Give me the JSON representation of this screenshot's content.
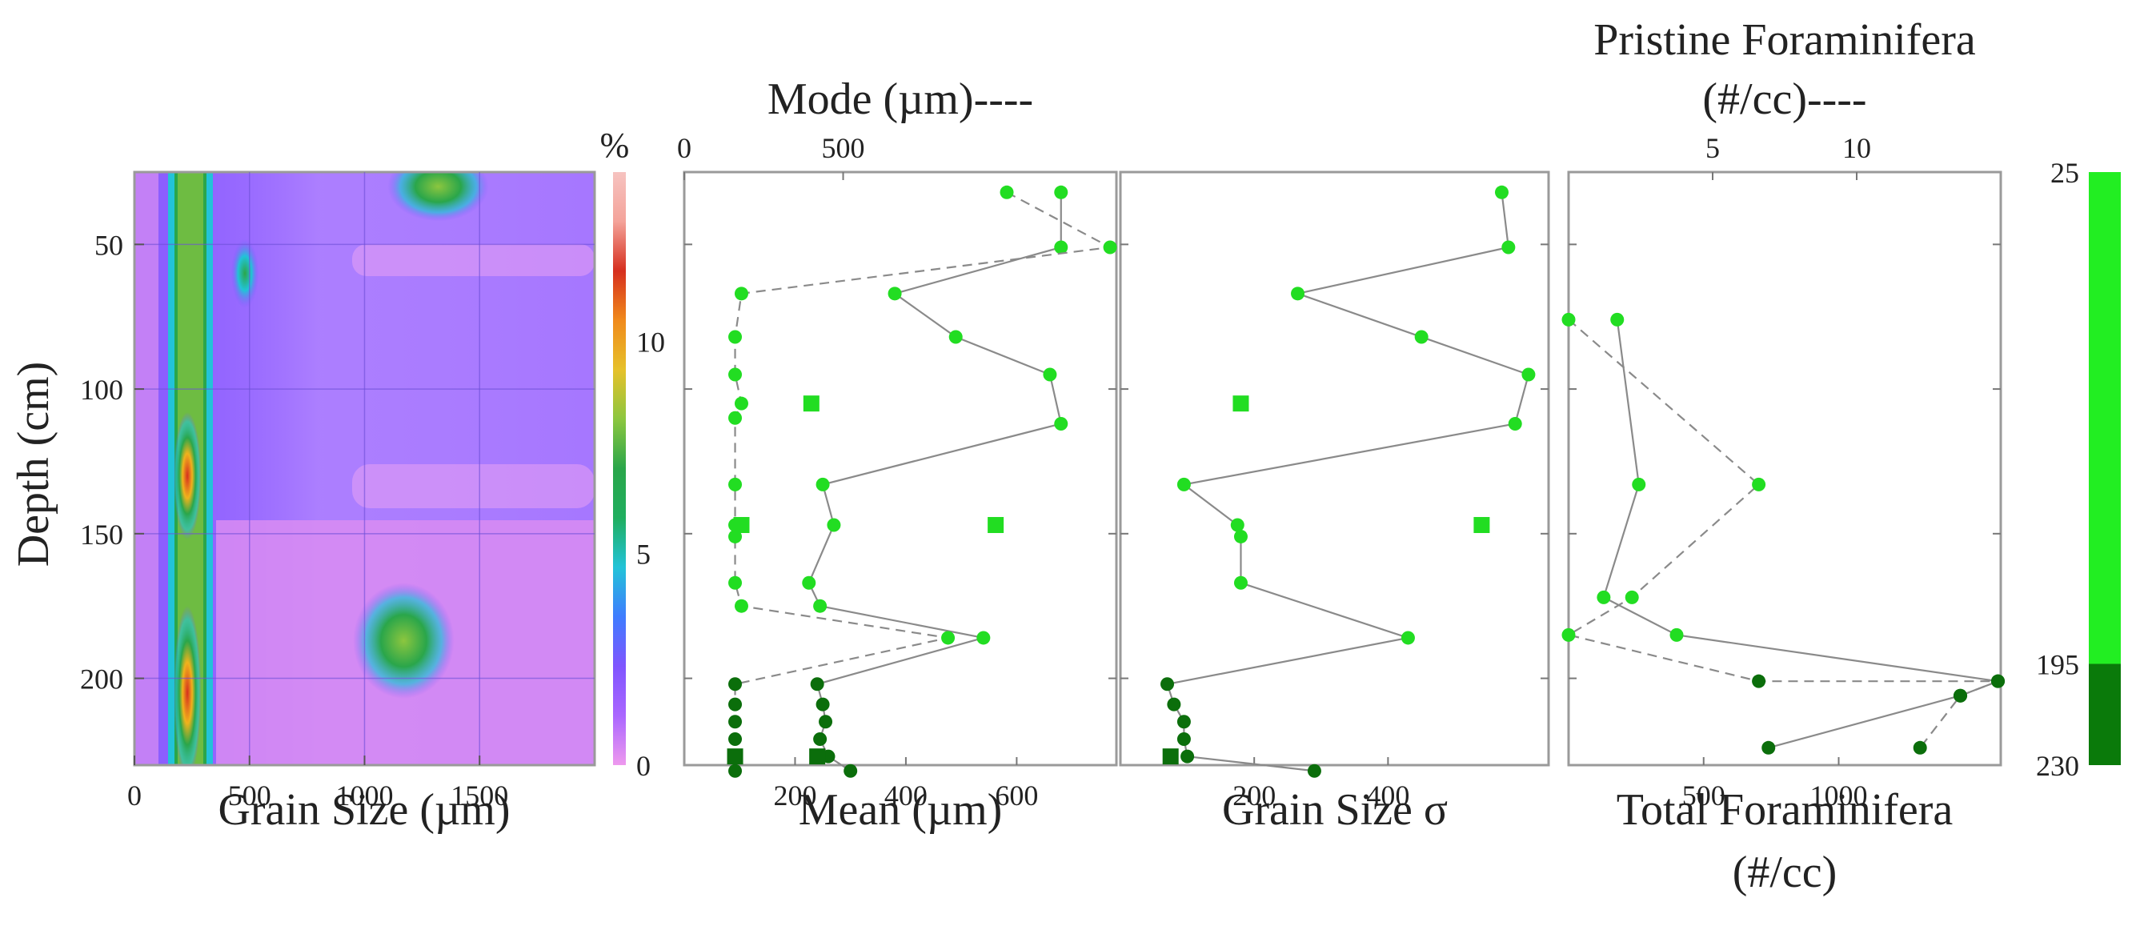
{
  "colors": {
    "light_green": "#22dd22",
    "dark_green": "#0b6e0b",
    "zone_light": "#22ee22",
    "zone_dark": "#0a7a0a",
    "line": "#8a8a8a",
    "colorbar": [
      "#ee99ee",
      "#aa66ff",
      "#7f55ff",
      "#3f7cff",
      "#22c3d8",
      "#1fae5f",
      "#2aa64a",
      "#8cc63f",
      "#e6c12a",
      "#f08a1c",
      "#d62f1e",
      "#f4a39a",
      "#f6c3c0"
    ]
  },
  "chart_data": [
    {
      "id": "heatmap",
      "type": "heatmap",
      "xlabel": "Grain Size (µm)",
      "ylabel": "Depth (cm)",
      "xticks": [
        "0",
        "500",
        "1000",
        "1500"
      ],
      "xtick_values": [
        0,
        500,
        1000,
        1500
      ],
      "yticks": [
        "50",
        "100",
        "150",
        "200"
      ],
      "ytick_values": [
        50,
        100,
        150,
        200
      ],
      "xlim": [
        0,
        2000
      ],
      "ylim": [
        25,
        230
      ],
      "colorbar": {
        "label": "%",
        "ticks": [
          "0",
          "5",
          "10"
        ],
        "tick_values": [
          0,
          5,
          10
        ],
        "range": [
          0,
          14
        ]
      },
      "features": [
        {
          "grain_um": 230,
          "depth_cm": 130,
          "width_um": 60,
          "height_cm": 22,
          "level": 13
        },
        {
          "grain_um": 230,
          "depth_cm": 205,
          "width_um": 60,
          "height_cm": 30,
          "level": 12.5
        },
        {
          "grain_um": 1170,
          "depth_cm": 187,
          "width_um": 220,
          "height_cm": 20,
          "level": 7
        },
        {
          "grain_um": 1320,
          "depth_cm": 30,
          "width_um": 220,
          "height_cm": 12,
          "level": 6.5
        },
        {
          "grain_um": 480,
          "depth_cm": 60,
          "width_um": 60,
          "height_cm": 12,
          "level": 6
        }
      ]
    },
    {
      "id": "mean_mode",
      "type": "line",
      "xlabel": "Mean (µm)",
      "xticks": [
        "200",
        "400",
        "600"
      ],
      "xtick_values": [
        200,
        400,
        600
      ],
      "xlim": [
        0,
        780
      ],
      "top_label": "Mode (µm)----",
      "top_ticks": [
        "0",
        "500"
      ],
      "top_tick_values": [
        0,
        500
      ],
      "top_lim": [
        0,
        1360
      ],
      "ylim": [
        25,
        230
      ],
      "series": [
        {
          "name": "Mean",
          "style": "solid",
          "points": [
            [
              680,
              32
            ],
            [
              680,
              51
            ],
            [
              380,
              67
            ],
            [
              490,
              82
            ],
            [
              660,
              95
            ],
            [
              680,
              112
            ],
            [
              250,
              133
            ],
            [
              270,
              147
            ],
            [
              225,
              167
            ],
            [
              245,
              175
            ],
            [
              540,
              186
            ],
            [
              240,
              202
            ],
            [
              250,
              209
            ],
            [
              255,
              215
            ],
            [
              245,
              221
            ],
            [
              260,
              227
            ],
            [
              300,
              232
            ]
          ],
          "squares": [
            [
              240,
              227
            ]
          ]
        },
        {
          "name": "Mode",
          "style": "dashed",
          "axis": "top",
          "points": [
            [
              1015,
              32
            ],
            [
              1340,
              51
            ],
            [
              180,
              67
            ],
            [
              160,
              82
            ],
            [
              160,
              95
            ],
            [
              180,
              105
            ],
            [
              160,
              110
            ],
            [
              160,
              133
            ],
            [
              160,
              147
            ],
            [
              160,
              151
            ],
            [
              160,
              167
            ],
            [
              180,
              175
            ],
            [
              830,
              186
            ],
            [
              160,
              202
            ],
            [
              160,
              209
            ],
            [
              160,
              215
            ],
            [
              160,
              221
            ],
            [
              160,
              227
            ],
            [
              160,
              232
            ]
          ],
          "squares": [
            [
              400,
              105
            ],
            [
              980,
              147
            ],
            [
              180,
              147
            ],
            [
              160,
              227
            ]
          ]
        }
      ]
    },
    {
      "id": "sigma",
      "type": "line",
      "xlabel": "Grain Size σ",
      "xticks": [
        "200",
        "400"
      ],
      "xtick_values": [
        200,
        400
      ],
      "xlim": [
        0,
        640
      ],
      "ylim": [
        25,
        230
      ],
      "series": [
        {
          "name": "Sigma",
          "style": "solid",
          "points": [
            [
              570,
              32
            ],
            [
              580,
              51
            ],
            [
              265,
              67
            ],
            [
              450,
              82
            ],
            [
              610,
              95
            ],
            [
              590,
              112
            ],
            [
              95,
              133
            ],
            [
              175,
              147
            ],
            [
              180,
              151
            ],
            [
              180,
              167
            ],
            [
              430,
              186
            ],
            [
              70,
              202
            ],
            [
              80,
              209
            ],
            [
              95,
              215
            ],
            [
              95,
              221
            ],
            [
              100,
              227
            ],
            [
              290,
              232
            ]
          ],
          "squares": [
            [
              180,
              105
            ],
            [
              540,
              147
            ],
            [
              75,
              227
            ]
          ]
        }
      ]
    },
    {
      "id": "forams",
      "type": "line",
      "xlabel": "Total Foraminifera",
      "xlabel2": "(#/cc)",
      "xticks": [
        "500",
        "1000"
      ],
      "xtick_values": [
        500,
        1000
      ],
      "xlim": [
        0,
        1600
      ],
      "top_label": "Pristine Foraminifera",
      "top_label2": "(#/cc)----",
      "top_ticks": [
        "5",
        "10"
      ],
      "top_tick_values": [
        5,
        10
      ],
      "top_lim": [
        0,
        15
      ],
      "ylim": [
        25,
        230
      ],
      "series": [
        {
          "name": "Total",
          "style": "solid",
          "points": [
            [
              180,
              76
            ],
            [
              260,
              133
            ],
            [
              130,
              172
            ],
            [
              400,
              185
            ],
            [
              1590,
              201
            ],
            [
              1450,
              206
            ],
            [
              740,
              224
            ]
          ]
        },
        {
          "name": "Pristine",
          "style": "dashed",
          "axis": "top",
          "points": [
            [
              0,
              76
            ],
            [
              6.6,
              133
            ],
            [
              2.2,
              172
            ],
            [
              0,
              185
            ],
            [
              6.6,
              201
            ],
            [
              14.9,
              201
            ],
            [
              13.6,
              206
            ],
            [
              12.2,
              224
            ]
          ]
        }
      ]
    },
    {
      "id": "zones",
      "type": "bar",
      "ticks": [
        "25",
        "195",
        "230"
      ],
      "tick_values": [
        25,
        195,
        230
      ],
      "segments": [
        {
          "from": 25,
          "to": 195,
          "tone": "light"
        },
        {
          "from": 195,
          "to": 230,
          "tone": "dark"
        }
      ]
    }
  ]
}
